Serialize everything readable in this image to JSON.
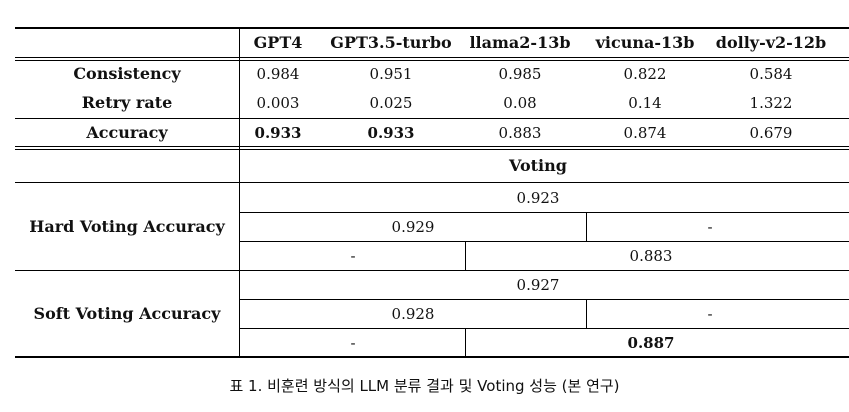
{
  "models": [
    "GPT4",
    "GPT3.5-turbo",
    "llama2-13b",
    "vicuna-13b",
    "dolly-v2-12b"
  ],
  "metrics": [
    {
      "label": "Consistency",
      "values": [
        "0.984",
        "0.951",
        "0.985",
        "0.822",
        "0.584"
      ],
      "bold": [
        false,
        false,
        false,
        false,
        false
      ]
    },
    {
      "label": "Retry rate",
      "values": [
        "0.003",
        "0.025",
        "0.08",
        "0.14",
        "1.322"
      ],
      "bold": [
        false,
        false,
        false,
        false,
        false
      ]
    },
    {
      "label": "Accuracy",
      "values": [
        "0.933",
        "0.933",
        "0.883",
        "0.874",
        "0.679"
      ],
      "bold": [
        true,
        true,
        false,
        false,
        false
      ]
    }
  ],
  "voting": {
    "header": "Voting",
    "hard": {
      "label": "Hard Voting Accuracy",
      "all": "0.923",
      "row2_left": "0.929",
      "row2_right": "-",
      "row3_left": "-",
      "row3_right": "0.883"
    },
    "soft": {
      "label": "Soft Voting Accuracy",
      "all": "0.927",
      "row2_left": "0.928",
      "row2_right": "-",
      "row3_left": "-",
      "row3_right": "0.887"
    }
  },
  "caption": "표 1. 비훈련 방식의 LLM 분류 결과 및 Voting 성능 (본 연구)"
}
